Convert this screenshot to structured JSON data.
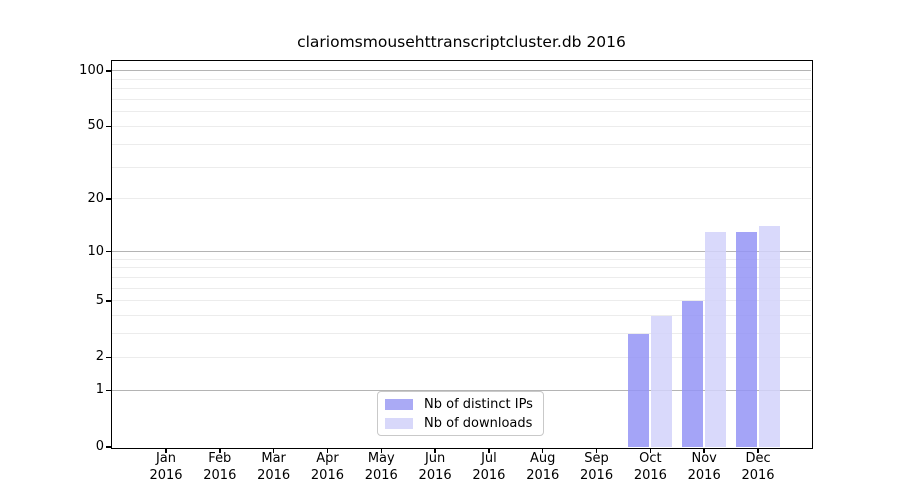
{
  "chart_data": {
    "type": "bar",
    "title": "clariomsmousehttranscriptcluster.db 2016",
    "categories": [
      "Jan",
      "Feb",
      "Mar",
      "Apr",
      "May",
      "Jun",
      "Jul",
      "Aug",
      "Sep",
      "Oct",
      "Nov",
      "Dec"
    ],
    "x_tick_year": "2016",
    "series": [
      {
        "name": "Nb of distinct IPs",
        "values": [
          0,
          0,
          0,
          0,
          0,
          0,
          0,
          0,
          0,
          3,
          5,
          13
        ],
        "bar_color": "rgba(148,148,246,0.85)",
        "legend_color": "#aaaaf5"
      },
      {
        "name": "Nb of downloads",
        "values": [
          0,
          0,
          0,
          0,
          0,
          0,
          0,
          0,
          0,
          4,
          13,
          14
        ],
        "bar_color": "rgba(210,210,250,0.85)",
        "legend_color": "#d8d8fa"
      }
    ],
    "y_axis": {
      "scale": "log10(value+1)",
      "ticks": [
        0,
        1,
        2,
        5,
        10,
        20,
        50,
        100
      ],
      "range": [
        0,
        100
      ]
    },
    "grid": {
      "major": [
        1,
        10,
        100
      ],
      "minor": [
        2,
        3,
        4,
        5,
        6,
        7,
        8,
        9,
        20,
        30,
        40,
        50,
        60,
        70,
        80,
        90
      ],
      "major_color": "#b4b4b4",
      "minor_color": "#ececec"
    },
    "legend_position": "inside-bottom-center"
  }
}
